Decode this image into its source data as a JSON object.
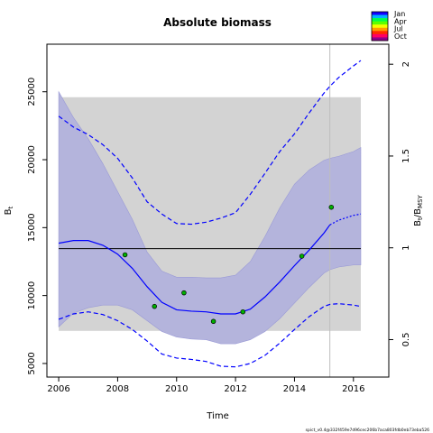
{
  "chart_data": {
    "type": "line",
    "title": "Absolute biomass",
    "xlabel": "Time",
    "ylabel": "B",
    "ylabel_sub": "t",
    "y2label": "B",
    "y2label_sub": "t",
    "y2label_mid": "/B",
    "y2label_sub2": "MSY",
    "xlim": [
      2005.6,
      2017.2
    ],
    "ylim": [
      4000,
      28500
    ],
    "x_ticks": [
      2006,
      2008,
      2010,
      2012,
      2014,
      2016
    ],
    "y_ticks": [
      5000,
      10000,
      15000,
      20000,
      25000
    ],
    "y2_ticks": [
      0.5,
      1,
      1.5,
      2
    ],
    "y2_ratio_per_unit": 7.4e-05,
    "msy_level": 13450,
    "forecast_start": 2015.2,
    "shaded_region": {
      "x": [
        2006,
        2016.25
      ],
      "y": [
        7400,
        24600
      ]
    },
    "observations": {
      "x": [
        2008.25,
        2009.25,
        2010.25,
        2011.25,
        2012.25,
        2014.25,
        2015.25
      ],
      "y": [
        13000,
        9200,
        10200,
        8100,
        8800,
        12900,
        16500
      ]
    },
    "estimate": {
      "x": [
        2006,
        2006.5,
        2007,
        2007.5,
        2008,
        2008.5,
        2009,
        2009.5,
        2010,
        2010.5,
        2011,
        2011.5,
        2012,
        2012.5,
        2013,
        2013.5,
        2014,
        2014.5,
        2015,
        2015.2,
        2015.5,
        2016,
        2016.25
      ],
      "y": [
        13850,
        14050,
        14050,
        13700,
        13050,
        12000,
        10650,
        9500,
        8950,
        8850,
        8800,
        8650,
        8650,
        9000,
        9900,
        11000,
        12200,
        13350,
        14600,
        15200,
        15550,
        15900,
        16000
      ]
    },
    "estimate_ci": {
      "lower": [
        7700,
        8700,
        9100,
        9300,
        9300,
        8950,
        8150,
        7350,
        6950,
        6800,
        6750,
        6450,
        6450,
        6750,
        7350,
        8300,
        9450,
        10600,
        11650,
        11900,
        12100,
        12250,
        12250
      ],
      "upper": [
        25000,
        23100,
        21550,
        19700,
        17650,
        15600,
        13200,
        11800,
        11350,
        11350,
        11300,
        11300,
        11500,
        12500,
        14350,
        16450,
        18200,
        19250,
        19950,
        20100,
        20250,
        20600,
        20900
      ]
    },
    "prediction_interval": {
      "lower": [
        8250,
        8650,
        8800,
        8600,
        8150,
        7500,
        6650,
        5700,
        5400,
        5300,
        5150,
        4800,
        4750,
        5000,
        5600,
        6500,
        7500,
        8450,
        9200,
        9350,
        9400,
        9300,
        9200
      ],
      "upper": [
        23200,
        22400,
        21850,
        21100,
        20100,
        18650,
        16900,
        16000,
        15300,
        15250,
        15400,
        15700,
        16100,
        17450,
        19000,
        20600,
        21900,
        23450,
        24900,
        25400,
        26050,
        26900,
        27300
      ]
    },
    "legend": {
      "placement": "top-right",
      "entries": [
        "Jan",
        "Apr",
        "Jul",
        "Oct"
      ],
      "colors": [
        "#1200ff",
        "#00b0ff",
        "#00ff48",
        "#5cff00",
        "#f4ff00",
        "#ff9c00",
        "#ff2a00",
        "#ff0064",
        "#90008c"
      ]
    },
    "colors": {
      "ci_fill": "#b4b4dc",
      "shade_fill": "#d3d3d3",
      "line": "#0000ff",
      "point_fill": "#00b000",
      "msy_line": "#000000",
      "forecast_line": "#bebebe"
    }
  },
  "footer": "spict_v0.4@332f459e7d96cec206b7aca803fdb0eb73eba526"
}
